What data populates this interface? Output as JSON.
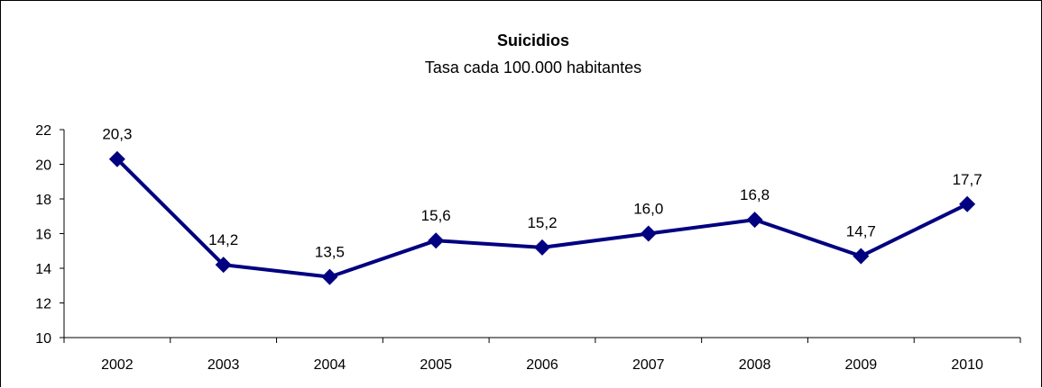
{
  "chart_data": {
    "type": "line",
    "title": "Suicidios",
    "subtitle": "Tasa cada 100.000 habitantes",
    "xlabel": "",
    "ylabel": "",
    "categories": [
      "2002",
      "2003",
      "2004",
      "2005",
      "2006",
      "2007",
      "2008",
      "2009",
      "2010"
    ],
    "series": [
      {
        "values": [
          20.3,
          14.2,
          13.5,
          15.6,
          15.2,
          16.0,
          16.8,
          14.7,
          17.7
        ],
        "labels": [
          "20,3",
          "14,2",
          "13,5",
          "15,6",
          "15,2",
          "16,0",
          "16,8",
          "14,7",
          "17,7"
        ],
        "color": "#000080",
        "marker": "diamond"
      }
    ],
    "ylim": [
      10,
      22
    ],
    "yticks": [
      10,
      12,
      14,
      16,
      18,
      20,
      22
    ],
    "grid": false,
    "legend": "none"
  }
}
